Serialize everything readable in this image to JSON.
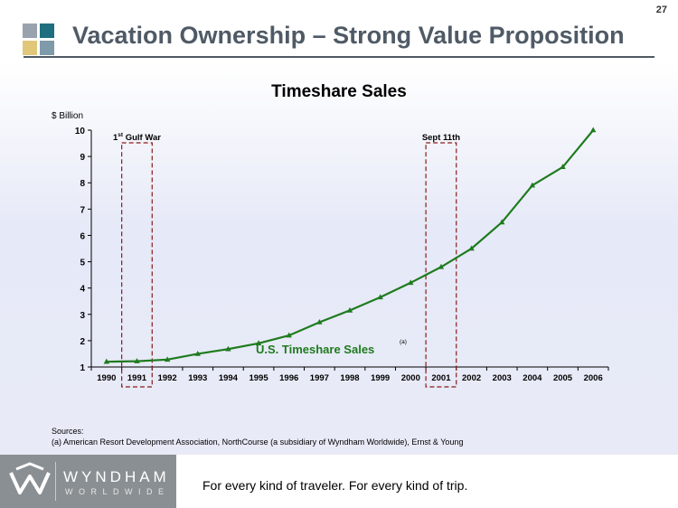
{
  "page_number": "27",
  "slide_title": "Vacation Ownership – Strong Value Proposition",
  "colors": {
    "series_line": "#1e7b1e",
    "highlight_box": "#8b1a1a",
    "title_text": "#4f5a66"
  },
  "icons": [
    "brand-squares-icon",
    "wyndham-w-icon"
  ],
  "chart_data": {
    "type": "line",
    "title": "Timeshare Sales",
    "ylabel": "$ Billion",
    "xlabel": "",
    "categories": [
      "1990",
      "1991",
      "1992",
      "1993",
      "1994",
      "1995",
      "1996",
      "1997",
      "1998",
      "1999",
      "2000",
      "2001",
      "2002",
      "2003",
      "2004",
      "2005",
      "2006"
    ],
    "series": [
      {
        "name": "U.S. Timeshare Sales",
        "marker": "triangle",
        "values": [
          1.2,
          1.22,
          1.28,
          1.5,
          1.68,
          1.9,
          2.2,
          2.7,
          3.15,
          3.65,
          4.2,
          4.8,
          5.5,
          6.5,
          7.9,
          8.6,
          10.0
        ]
      }
    ],
    "series_label": "U.S. Timeshare Sales",
    "series_label_note": "(a)",
    "ylim": [
      1,
      10
    ],
    "yticks": [
      1,
      2,
      3,
      4,
      5,
      6,
      7,
      8,
      9,
      10
    ],
    "grid": false,
    "highlights": [
      {
        "label_main": "1",
        "label_sup": "st",
        "label_rest": " Gulf War",
        "category": "1991"
      },
      {
        "label_main": "Sept 11th",
        "label_sup": "",
        "label_rest": "",
        "category": "2001"
      }
    ]
  },
  "sources": {
    "heading": "Sources:",
    "note_a": "(a)  American Resort Development Association, NorthCourse (a subsidiary of Wyndham Worldwide), Ernst & Young"
  },
  "footer": {
    "brand": "WYNDHAM",
    "brand_sub": "WORLDWIDE",
    "tagline": "For every kind of traveler. For every kind of trip."
  }
}
